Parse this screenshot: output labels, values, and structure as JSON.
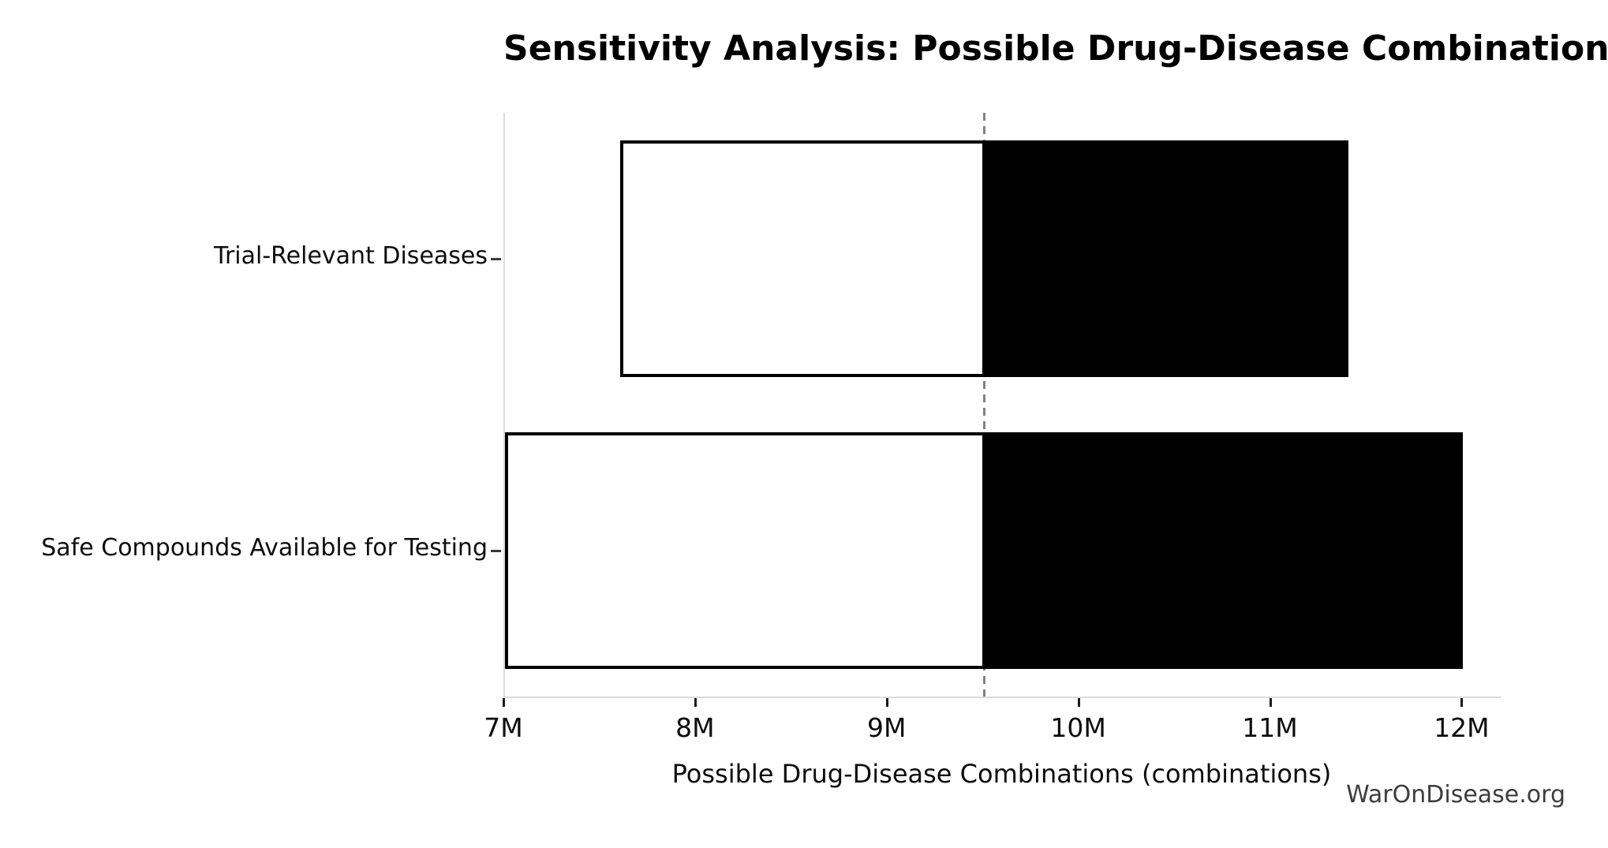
{
  "chart_data": {
    "type": "bar",
    "subtype": "tornado-sensitivity-horizontal",
    "title": "Sensitivity Analysis: Possible Drug-Disease Combinations",
    "xlabel": "Possible Drug-Disease Combinations (combinations)",
    "watermark": "WarOnDisease.org",
    "categories": [
      "Trial-Relevant Diseases",
      "Safe Compounds Available for Testing"
    ],
    "bars": [
      {
        "label": "Trial-Relevant Diseases",
        "low": 7.6,
        "high": 11.4
      },
      {
        "label": "Safe Compounds Available for Testing",
        "low": 7.0,
        "high": 12.0
      }
    ],
    "series": [
      {
        "name": "low-side (white segment)",
        "values": [
          7.6,
          7.0
        ]
      },
      {
        "name": "high-side (black segment)",
        "values": [
          11.4,
          12.0
        ]
      }
    ],
    "baseline": 9.5,
    "x_unit": "M",
    "xlim": [
      7,
      12.2
    ],
    "xtick_values": [
      7,
      8,
      9,
      10,
      11,
      12
    ],
    "xticks": [
      "7M",
      "8M",
      "9M",
      "10M",
      "11M",
      "12M"
    ],
    "grid": false,
    "legend": false,
    "colors": {
      "low_fill": "#ffffff",
      "high_fill": "#000000",
      "bar_border": "#000000",
      "baseline_line": "#808080",
      "spine": "#dcdcdc",
      "tick_mark": "#1a1a1a",
      "text": "#0d0d0d",
      "watermark": "#3d3d3d",
      "background": "#ffffff"
    }
  }
}
